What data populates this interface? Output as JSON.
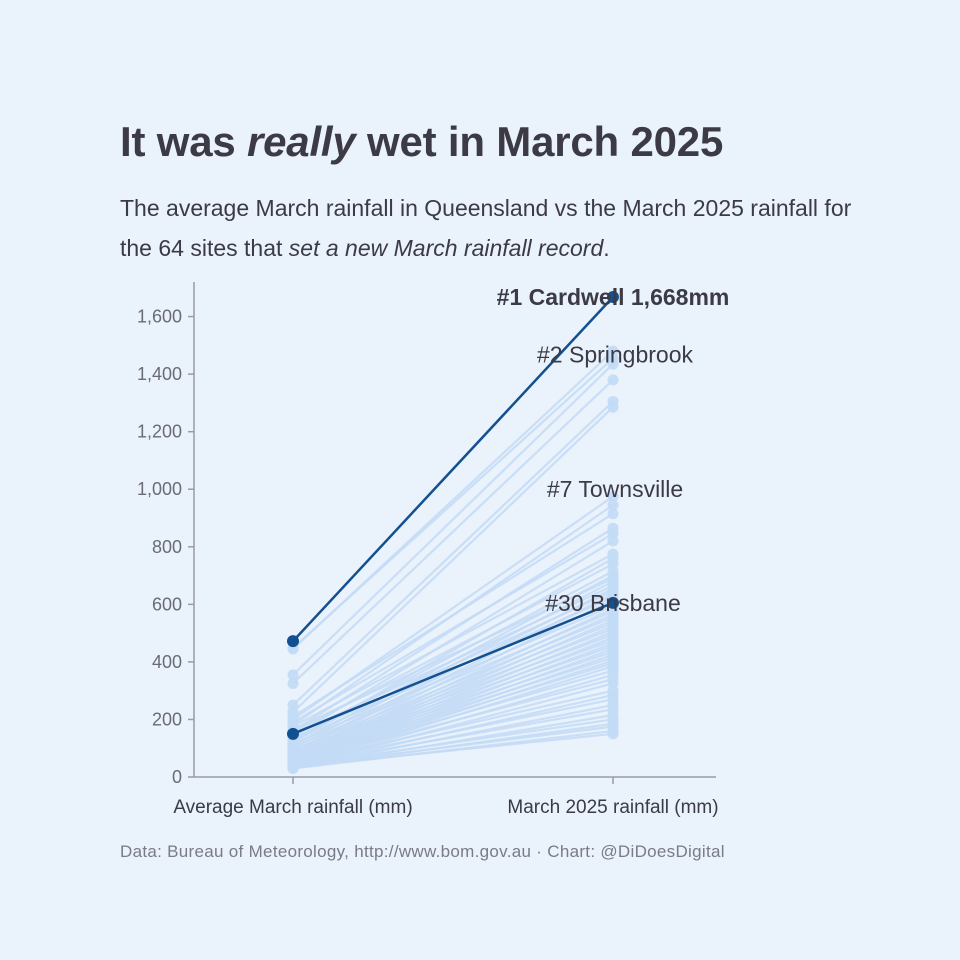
{
  "header": {
    "title_pre": "It was ",
    "title_em": "really",
    "title_post": " wet in March 2025",
    "subtitle_pre": "The average March rainfall in Queensland vs the March 2025 rainfall for the 64 sites that ",
    "subtitle_em": "set a new March rainfall record",
    "subtitle_post": "."
  },
  "footer": {
    "source": "Data: Bureau of Meteorology, http://www.bom.gov.au · Chart: @DiDoesDigital"
  },
  "colors": {
    "background": "#eaf2fb",
    "highlight": "#13508f",
    "faded": "#c3dbf6",
    "axis": "#9a9aaa",
    "text": "#3b3a45"
  },
  "chart_data": {
    "type": "line",
    "subtype": "slope",
    "categories": [
      "Average March rainfall (mm)",
      "March 2025 rainfall (mm)"
    ],
    "ylim": [
      0,
      1668
    ],
    "yticks": [
      0,
      200,
      400,
      600,
      800,
      1000,
      1200,
      1400,
      1600
    ],
    "ytick_labels": [
      "0",
      "200",
      "400",
      "600",
      "800",
      "1,000",
      "1,200",
      "1,400",
      "1,600"
    ],
    "grid": false,
    "highlighted": [
      {
        "name": "Cardwell",
        "values": [
          472,
          1668
        ],
        "label": "#1 Cardwell 1,668mm",
        "bold": true
      },
      {
        "name": "Brisbane",
        "values": [
          150,
          605
        ],
        "label": "#30 Brisbane",
        "bold": false
      }
    ],
    "annotations": [
      {
        "text": "#2 Springbrook",
        "y": 1468
      },
      {
        "text": "#7 Townsville",
        "y": 1000
      }
    ],
    "series": [
      {
        "values": [
          448,
          1455
        ]
      },
      {
        "values": [
          355,
          1435
        ]
      },
      {
        "values": [
          325,
          1380
        ]
      },
      {
        "values": [
          250,
          1305
        ]
      },
      {
        "values": [
          225,
          1285
        ]
      },
      {
        "values": [
          445,
          1480
        ]
      },
      {
        "values": [
          200,
          975
        ]
      },
      {
        "values": [
          180,
          945
        ]
      },
      {
        "values": [
          210,
          915
        ]
      },
      {
        "values": [
          160,
          865
        ]
      },
      {
        "values": [
          190,
          845
        ]
      },
      {
        "values": [
          140,
          820
        ]
      },
      {
        "values": [
          175,
          775
        ]
      },
      {
        "values": [
          120,
          760
        ]
      },
      {
        "values": [
          155,
          740
        ]
      },
      {
        "values": [
          130,
          715
        ]
      },
      {
        "values": [
          110,
          700
        ]
      },
      {
        "values": [
          165,
          690
        ]
      },
      {
        "values": [
          100,
          680
        ]
      },
      {
        "values": [
          145,
          665
        ]
      },
      {
        "values": [
          90,
          655
        ]
      },
      {
        "values": [
          135,
          645
        ]
      },
      {
        "values": [
          85,
          635
        ]
      },
      {
        "values": [
          125,
          625
        ]
      },
      {
        "values": [
          75,
          615
        ]
      },
      {
        "values": [
          115,
          595
        ]
      },
      {
        "values": [
          70,
          585
        ]
      },
      {
        "values": [
          105,
          575
        ]
      },
      {
        "values": [
          65,
          565
        ]
      },
      {
        "values": [
          95,
          555
        ]
      },
      {
        "values": [
          60,
          545
        ]
      },
      {
        "values": [
          88,
          535
        ]
      },
      {
        "values": [
          55,
          525
        ]
      },
      {
        "values": [
          82,
          515
        ]
      },
      {
        "values": [
          50,
          505
        ]
      },
      {
        "values": [
          78,
          495
        ]
      },
      {
        "values": [
          48,
          485
        ]
      },
      {
        "values": [
          72,
          475
        ]
      },
      {
        "values": [
          45,
          465
        ]
      },
      {
        "values": [
          68,
          455
        ]
      },
      {
        "values": [
          42,
          445
        ]
      },
      {
        "values": [
          64,
          435
        ]
      },
      {
        "values": [
          40,
          425
        ]
      },
      {
        "values": [
          60,
          415
        ]
      },
      {
        "values": [
          38,
          405
        ]
      },
      {
        "values": [
          56,
          395
        ]
      },
      {
        "values": [
          36,
          385
        ]
      },
      {
        "values": [
          52,
          370
        ]
      },
      {
        "values": [
          34,
          355
        ]
      },
      {
        "values": [
          50,
          340
        ]
      },
      {
        "values": [
          33,
          325
        ]
      },
      {
        "values": [
          47,
          300
        ]
      },
      {
        "values": [
          32,
          285
        ]
      },
      {
        "values": [
          44,
          270
        ]
      },
      {
        "values": [
          31,
          250
        ]
      },
      {
        "values": [
          41,
          235
        ]
      },
      {
        "values": [
          30,
          215
        ]
      },
      {
        "values": [
          39,
          200
        ]
      },
      {
        "values": [
          30,
          185
        ]
      },
      {
        "values": [
          37,
          175
        ]
      },
      {
        "values": [
          30,
          160
        ]
      },
      {
        "values": [
          35,
          150
        ]
      }
    ]
  }
}
